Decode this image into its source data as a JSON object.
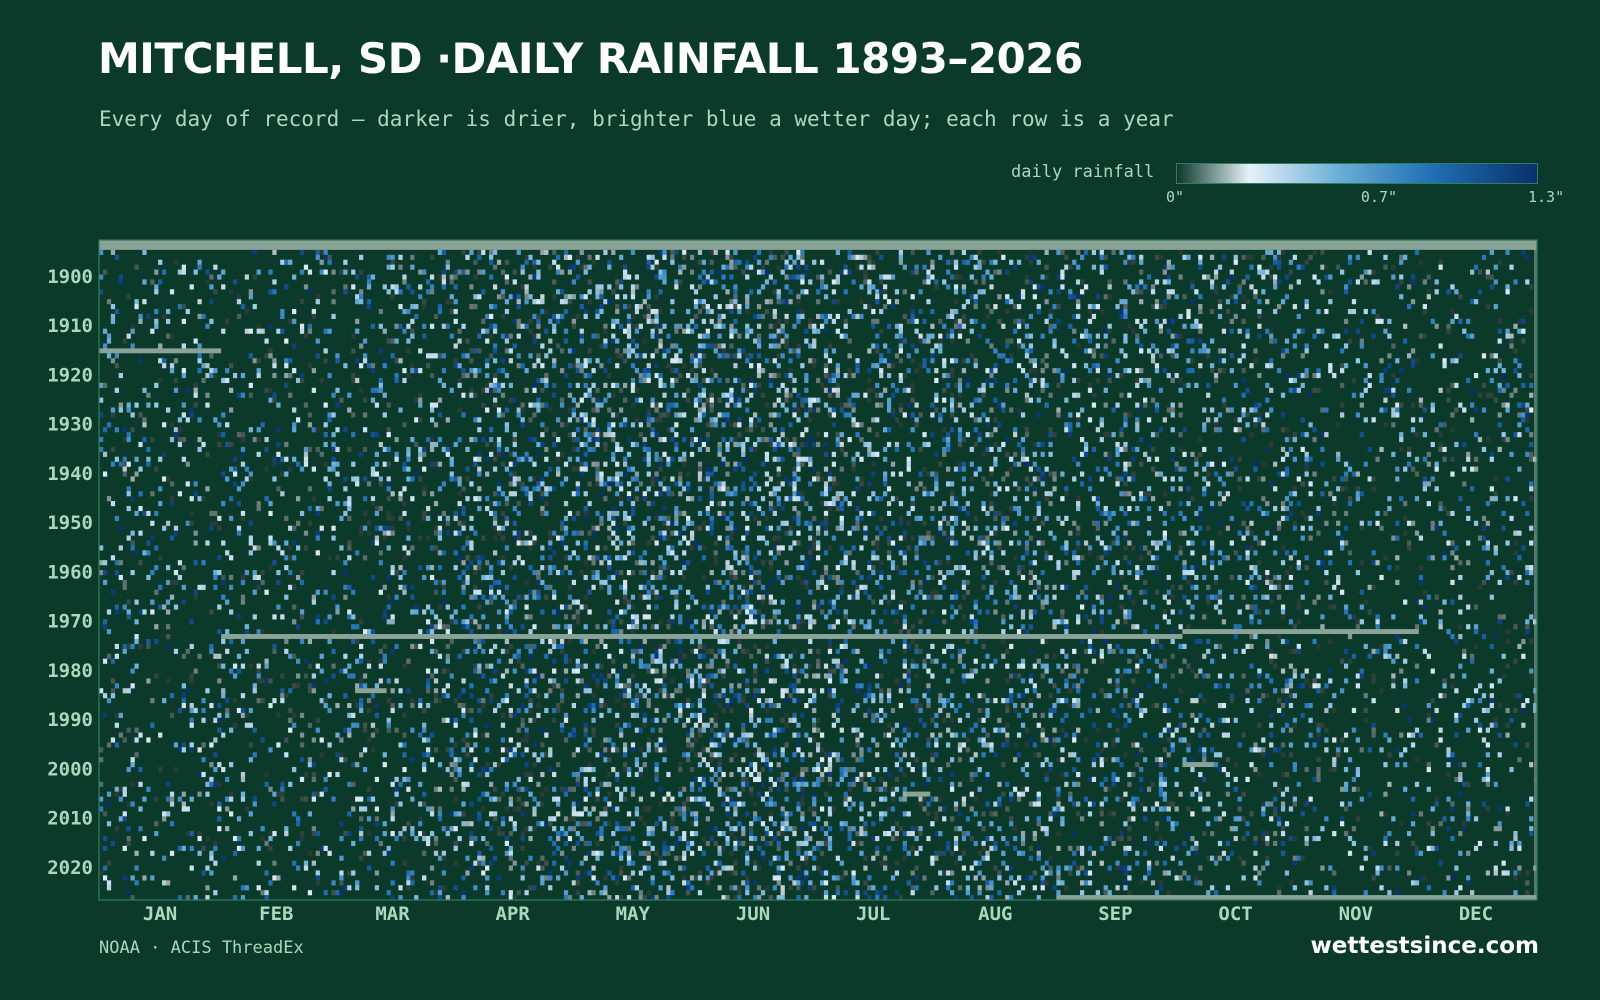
{
  "header": {
    "title": "MITCHELL, SD ·DAILY RAINFALL 1893–2026",
    "subtitle": "Every day of record — darker is drier, brighter blue a wetter day; each row is a year"
  },
  "legend": {
    "label": "daily rainfall",
    "ticks": [
      "0\"",
      "0.7\"",
      "1.3\""
    ],
    "tick_values": [
      0,
      0.7,
      1.3
    ],
    "scale_max": 1.3,
    "colors": {
      "dry": "#0b3a2b",
      "light": "#dcebf5",
      "mid": "#6baed6",
      "high": "#2171b5",
      "max": "#08306b",
      "missing": "#8aa396"
    }
  },
  "footer": {
    "source": "NOAA · ACIS ThreadEx",
    "brand": "wettestsince.com"
  },
  "chart_data": {
    "type": "heatmap",
    "title": "MITCHELL, SD ·DAILY RAINFALL 1893–2026",
    "subtitle": "Every day of record — darker is drier, brighter blue a wetter day; each row is a year",
    "x": "day of year",
    "y": "year",
    "year_range": [
      1893,
      2026
    ],
    "x_tick_labels": [
      "JAN",
      "FEB",
      "MAR",
      "APR",
      "MAY",
      "JUN",
      "JUL",
      "AUG",
      "SEP",
      "OCT",
      "NOV",
      "DEC"
    ],
    "y_tick_labels": [
      "1900",
      "1910",
      "1920",
      "1930",
      "1940",
      "1950",
      "1960",
      "1970",
      "1980",
      "1990",
      "2000",
      "2010",
      "2020"
    ],
    "y_tick_values": [
      1900,
      1910,
      1920,
      1930,
      1940,
      1950,
      1960,
      1970,
      1980,
      1990,
      2000,
      2010,
      2020
    ],
    "color_scale": {
      "label": "daily rainfall",
      "unit": "in",
      "range": [
        0,
        1.3
      ],
      "tick_labels": [
        "0\"",
        "0.7\"",
        "1.3\""
      ]
    },
    "monthly_wet_day_fraction": [
      0.13,
      0.14,
      0.19,
      0.26,
      0.3,
      0.32,
      0.26,
      0.24,
      0.22,
      0.18,
      0.14,
      0.13
    ],
    "missing_periods": [
      {
        "year": 1893,
        "start_day": 1,
        "end_day": 365
      },
      {
        "year": 1894,
        "start_day": 1,
        "end_day": 365
      },
      {
        "year": 1915,
        "start_day": 1,
        "end_day": 31
      },
      {
        "year": 1973,
        "start_day": 32,
        "end_day": 275
      },
      {
        "year": 1972,
        "start_day": 276,
        "end_day": 335
      },
      {
        "year": 1984,
        "start_day": 66,
        "end_day": 73
      },
      {
        "year": 1999,
        "start_day": 276,
        "end_day": 283
      },
      {
        "year": 2005,
        "start_day": 206,
        "end_day": 211
      },
      {
        "year": 2026,
        "start_day": 244,
        "end_day": 365
      }
    ],
    "note": "Individual daily cell values are rendered as a dense 365 × 134 grid; the picture shows wetter days concentrated April–August and fewer, lighter days November–February."
  }
}
